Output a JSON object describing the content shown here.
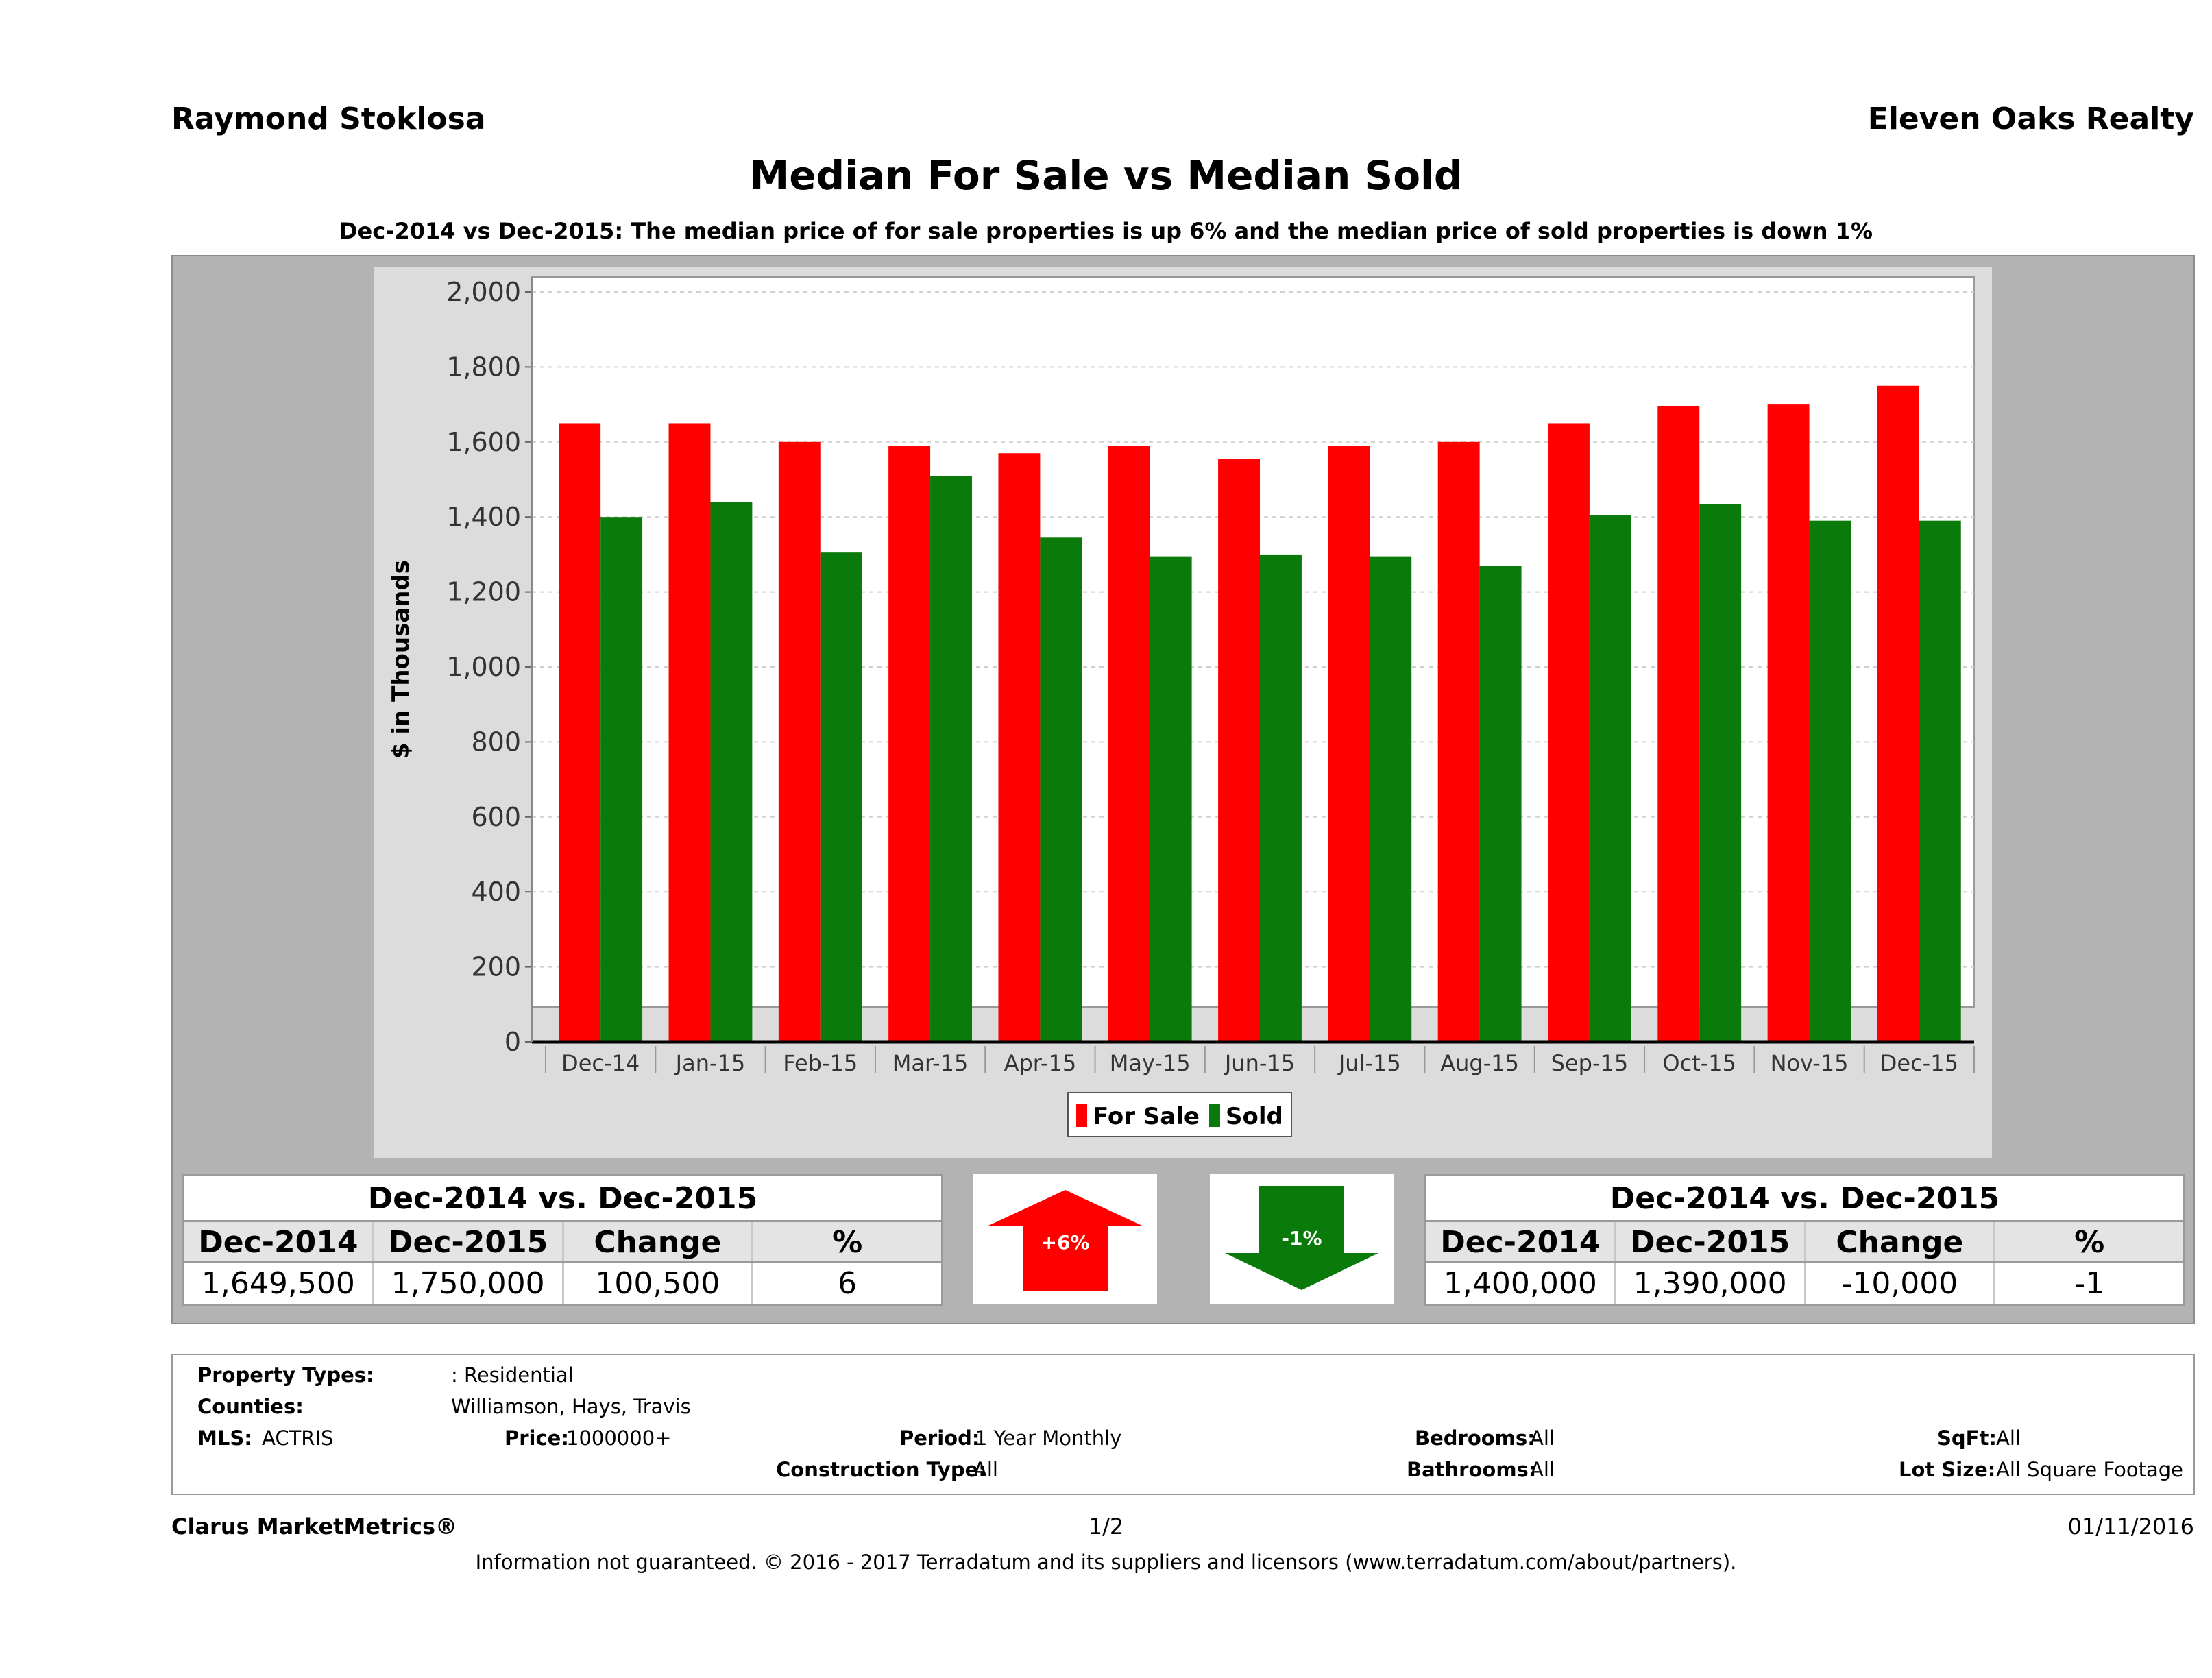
{
  "header": {
    "agent": "Raymond Stoklosa",
    "company": "Eleven Oaks Realty",
    "title": "Median For Sale vs Median Sold",
    "subtitle": "Dec-2014 vs Dec-2015: The median price of for sale properties is up 6% and the median price of sold properties is down 1%"
  },
  "colors": {
    "for_sale": "#ff0000",
    "sold": "#0a7a0a"
  },
  "chart_data": {
    "type": "bar",
    "title": "",
    "xlabel": "",
    "ylabel": "$ in Thousands",
    "ylim": [
      0,
      2000
    ],
    "yticks": [
      "0",
      "200",
      "400",
      "600",
      "800",
      "1,000",
      "1,200",
      "1,400",
      "1,600",
      "1,800",
      "2,000"
    ],
    "grid": true,
    "legend_position": "bottom-center",
    "categories": [
      "Dec-14",
      "Jan-15",
      "Feb-15",
      "Mar-15",
      "Apr-15",
      "May-15",
      "Jun-15",
      "Jul-15",
      "Aug-15",
      "Sep-15",
      "Oct-15",
      "Nov-15",
      "Dec-15"
    ],
    "series": [
      {
        "name": "For Sale",
        "values": [
          1650,
          1650,
          1600,
          1590,
          1570,
          1590,
          1555,
          1590,
          1600,
          1650,
          1695,
          1700,
          1750
        ]
      },
      {
        "name": "Sold",
        "values": [
          1400,
          1440,
          1305,
          1510,
          1345,
          1295,
          1300,
          1295,
          1270,
          1405,
          1435,
          1390,
          1390
        ]
      }
    ]
  },
  "for_sale_table": {
    "title": "Dec-2014 vs. Dec-2015",
    "headers": [
      "Dec-2014",
      "Dec-2015",
      "Change",
      "%"
    ],
    "values": [
      "1,649,500",
      "1,750,000",
      "100,500",
      "6"
    ]
  },
  "sold_table": {
    "title": "Dec-2014 vs. Dec-2015",
    "headers": [
      "Dec-2014",
      "Dec-2015",
      "Change",
      "%"
    ],
    "values": [
      "1,400,000",
      "1,390,000",
      "-10,000",
      "-1"
    ]
  },
  "badges": {
    "up_label": "+6%",
    "down_label": "-1%"
  },
  "criteria": {
    "property_types_label": "Property Types:",
    "property_types_value": ": Residential",
    "counties_label": "Counties:",
    "counties_value": "Williamson, Hays, Travis",
    "mls_label": "MLS:",
    "mls_value": "ACTRIS",
    "price_label": "Price:",
    "price_value": "1000000+",
    "period_label": "Period:",
    "period_value": "1 Year Monthly",
    "construction_label": "Construction Type:",
    "construction_value": "All",
    "bedrooms_label": "Bedrooms:",
    "bedrooms_value": "All",
    "bathrooms_label": "Bathrooms:",
    "bathrooms_value": "All",
    "sqft_label": "SqFt:",
    "sqft_value": "All",
    "lot_label": "Lot Size:",
    "lot_value": "All Square Footage"
  },
  "footer": {
    "brand": "Clarus MarketMetrics®",
    "page": "1/2",
    "date": "01/11/2016",
    "disclaimer": "Information not guaranteed. © 2016 - 2017 Terradatum and its suppliers and licensors (www.terradatum.com/about/partners)."
  }
}
